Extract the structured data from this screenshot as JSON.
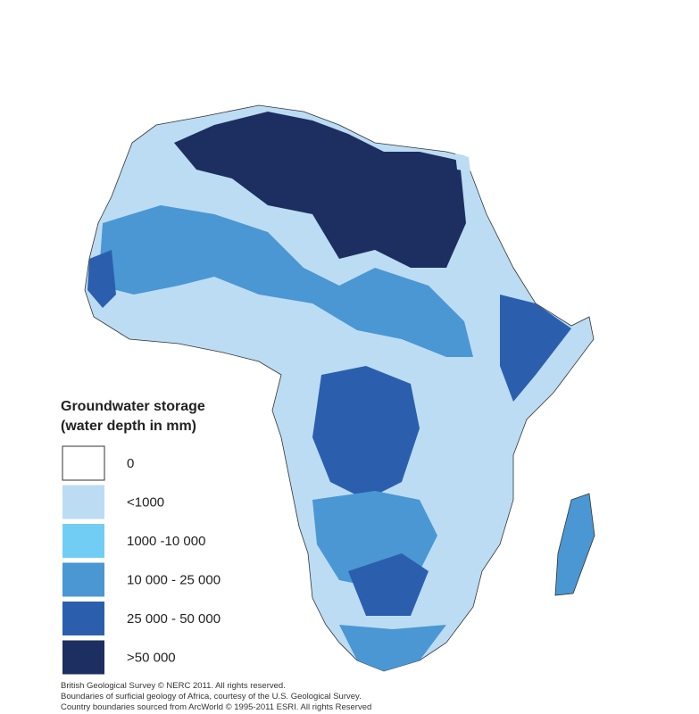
{
  "legend": {
    "title": [
      "Groundwater storage",
      "(water depth in mm)"
    ],
    "items": [
      {
        "label": "0",
        "color": "#ffffff"
      },
      {
        "label": "<1000",
        "color": "#bcdcf4"
      },
      {
        "label": "1000 -10 000",
        "color": "#72cdf4"
      },
      {
        "label": "10 000 - 25 000",
        "color": "#4a97d3"
      },
      {
        "label": "25 000 - 50 000",
        "color": "#2b5fae"
      },
      {
        "label": ">50 000",
        "color": "#1d2f60"
      }
    ]
  },
  "credits": [
    "British Geological Survey © NERC 2011.  All rights reserved.",
    "Boundaries of surficial geology of Africa, courtesy of the U.S. Geological Survey.",
    "Country boundaries sourced from ArcWorld © 1995-2011 ESRI.  All rights Reserved"
  ]
}
